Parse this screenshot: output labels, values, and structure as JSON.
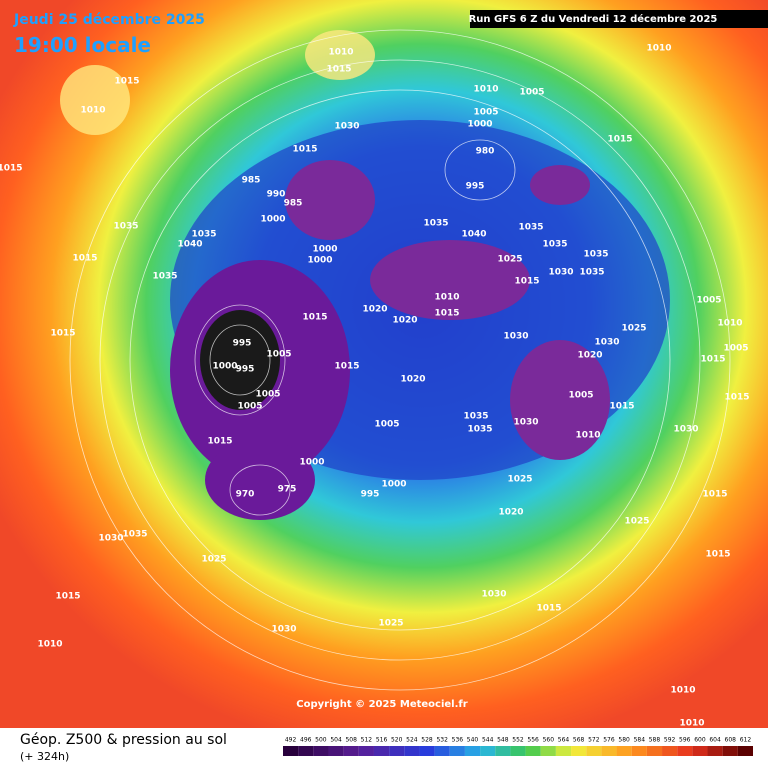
{
  "header": {
    "date": "Jeudi 25 décembre 2025",
    "time": "19:00 locale",
    "run": "Run GFS 6 Z du Vendredi 12 décembre 2025"
  },
  "map": {
    "pressure_labels": [
      1010,
      1015,
      1010,
      1015,
      1010,
      1015,
      1030,
      1010,
      1005,
      1005,
      1000,
      1015,
      980,
      995,
      1015,
      985,
      990,
      985,
      1000,
      1035,
      1035,
      1040,
      1035,
      1040,
      1035,
      1035,
      1035,
      1000,
      1000,
      1025,
      1030,
      1035,
      1015,
      1035,
      1015,
      1010,
      1015,
      1020,
      1020,
      1015,
      1015,
      1005,
      1010,
      1025,
      1030,
      1030,
      1020,
      995,
      1005,
      1000,
      995,
      1015,
      1020,
      1005,
      1015,
      1005,
      1005,
      1015,
      1015,
      1005,
      1035,
      1035,
      1030,
      1010,
      1030,
      1005,
      1015,
      1000,
      1025,
      1000,
      995,
      975,
      970,
      1020,
      1015,
      1025,
      1030,
      1035,
      1025,
      1015,
      1015,
      1030,
      1015,
      1025,
      1030,
      1010,
      1010,
      1010
    ]
  },
  "copyright": "Copyright © 2025 Meteociel.fr",
  "footer": {
    "title": "Géop. Z500 & pression au sol",
    "lead": "(+ 324h)"
  },
  "legend": {
    "levels": [
      492,
      496,
      500,
      504,
      508,
      512,
      516,
      520,
      524,
      528,
      532,
      536,
      540,
      544,
      548,
      552,
      556,
      560,
      564,
      568,
      572,
      576,
      580,
      584,
      588,
      592,
      596,
      600,
      604,
      608,
      612
    ]
  }
}
